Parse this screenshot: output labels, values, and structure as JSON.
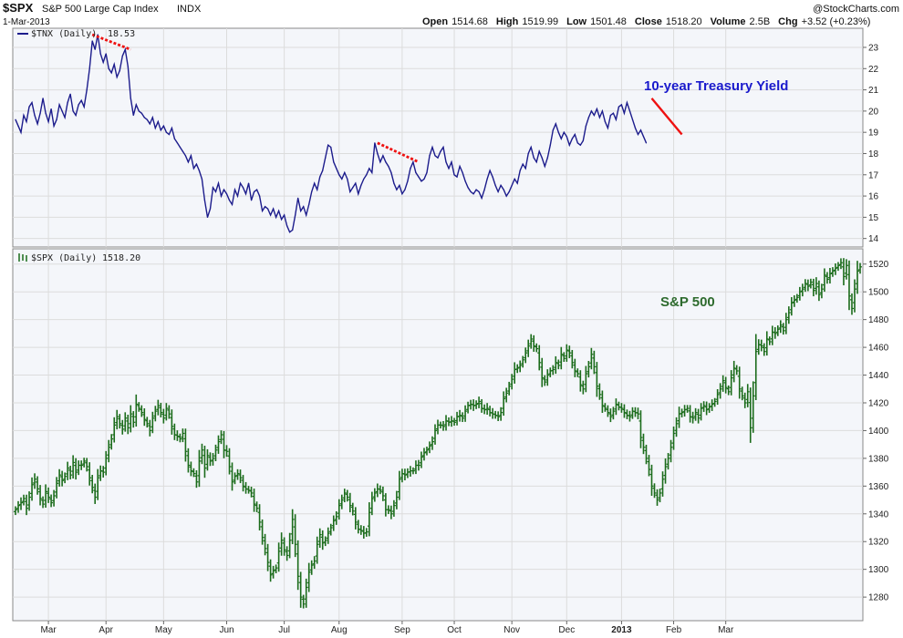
{
  "header": {
    "symbol": "$SPX",
    "name": "S&P 500 Large Cap Index",
    "exchange": "INDX",
    "date": "1-Mar-2013",
    "watermark": "@StockCharts.com",
    "stats": [
      {
        "label": "Open",
        "value": "1514.68"
      },
      {
        "label": "High",
        "value": "1519.99"
      },
      {
        "label": "Low",
        "value": "1501.48"
      },
      {
        "label": "Close",
        "value": "1518.20"
      },
      {
        "label": "Volume",
        "value": "2.5B"
      },
      {
        "label": "Chg",
        "value": "+3.52 (+0.23%)"
      }
    ]
  },
  "colors": {
    "tnx_line": "#1c1c8c",
    "spx_bars": "#1a6b1a",
    "trend_red": "#ee1111",
    "annot_blue": "#1a1acc",
    "annot_green": "#2e6b2e",
    "grid": "#dcdcdc",
    "panel_bg": "#f4f6fa"
  },
  "chart_data": [
    {
      "type": "line",
      "panel": "top",
      "series": [
        {
          "name": "$TNX (Daily)",
          "last_value": "18.53",
          "values": [
            19.6,
            19.3,
            19.0,
            19.8,
            19.5,
            20.2,
            20.4,
            19.8,
            19.4,
            19.9,
            20.6,
            19.9,
            19.5,
            20.1,
            19.3,
            19.6,
            20.3,
            20.0,
            19.7,
            20.4,
            20.8,
            20.0,
            19.8,
            20.3,
            20.5,
            20.2,
            21.0,
            22.0,
            23.3,
            22.9,
            23.6,
            22.7,
            22.3,
            22.7,
            22.0,
            21.8,
            22.2,
            21.6,
            21.9,
            22.6,
            22.9,
            22.1,
            20.6,
            19.8,
            20.3,
            20.0,
            19.9,
            19.7,
            19.6,
            19.4,
            19.7,
            19.2,
            19.5,
            19.1,
            19.3,
            19.0,
            18.9,
            19.2,
            18.7,
            18.5,
            18.3,
            18.1,
            17.9,
            17.6,
            17.9,
            17.3,
            17.5,
            17.2,
            16.8,
            15.8,
            15.0,
            15.4,
            16.4,
            16.2,
            16.6,
            16.0,
            16.3,
            16.1,
            15.8,
            15.6,
            16.3,
            16.0,
            16.6,
            16.4,
            16.1,
            16.6,
            15.8,
            16.2,
            16.3,
            16.0,
            15.3,
            15.5,
            15.4,
            15.1,
            15.4,
            15.0,
            15.3,
            14.9,
            15.1,
            14.6,
            14.3,
            14.4,
            15.1,
            15.9,
            15.3,
            15.5,
            15.1,
            15.6,
            16.2,
            16.6,
            16.3,
            16.9,
            17.2,
            17.8,
            18.4,
            18.3,
            17.6,
            17.3,
            17.0,
            16.8,
            17.1,
            16.8,
            16.2,
            16.4,
            16.6,
            16.1,
            16.5,
            16.8,
            17.0,
            17.3,
            17.1,
            18.5,
            18.0,
            17.6,
            17.9,
            17.6,
            17.4,
            17.1,
            16.6,
            16.3,
            16.5,
            16.1,
            16.3,
            16.7,
            17.3,
            17.6,
            17.1,
            16.9,
            16.7,
            16.8,
            17.1,
            17.9,
            18.3,
            17.9,
            17.8,
            18.1,
            18.3,
            17.6,
            17.3,
            17.6,
            17.0,
            16.9,
            17.4,
            17.1,
            16.7,
            16.4,
            16.2,
            16.1,
            16.3,
            16.2,
            15.9,
            16.3,
            16.8,
            17.2,
            16.9,
            16.5,
            16.2,
            16.5,
            16.3,
            16.0,
            16.2,
            16.5,
            16.8,
            16.6,
            17.2,
            17.5,
            17.3,
            18.0,
            18.3,
            17.8,
            17.6,
            18.1,
            17.8,
            17.4,
            17.8,
            18.4,
            19.1,
            19.4,
            19.0,
            18.7,
            19.0,
            18.8,
            18.4,
            18.7,
            18.9,
            18.5,
            18.4,
            18.6,
            19.3,
            19.7,
            20.0,
            19.8,
            20.1,
            19.7,
            20.0,
            19.5,
            19.2,
            19.8,
            19.9,
            19.6,
            20.2,
            20.3,
            19.9,
            20.4,
            20.0,
            19.6,
            19.2,
            18.9,
            19.1,
            18.8,
            18.5
          ]
        }
      ],
      "y_ticks": [
        14,
        15,
        16,
        17,
        18,
        19,
        20,
        21,
        22,
        23
      ],
      "ylim": [
        13.6,
        23.9
      ],
      "annotations": [
        {
          "text": "10-year Treasury Yield",
          "color": "annot_blue"
        }
      ],
      "trendlines": [
        {
          "from": [
            28,
            23.6
          ],
          "to": [
            42,
            22.9
          ],
          "style": "dotted"
        },
        {
          "from": [
            132,
            18.5
          ],
          "to": [
            147,
            17.6
          ],
          "style": "dotted"
        },
        {
          "from": [
            232,
            20.6
          ],
          "to": [
            243,
            18.9
          ],
          "style": "solid"
        }
      ]
    },
    {
      "type": "ohlc",
      "panel": "bottom",
      "series": [
        {
          "name": "$SPX (Daily)",
          "last_value": "1518.20",
          "close": [
            1343,
            1346,
            1348,
            1351,
            1344,
            1352,
            1361,
            1365,
            1358,
            1351,
            1347,
            1356,
            1352,
            1348,
            1353,
            1362,
            1368,
            1364,
            1367,
            1373,
            1368,
            1377,
            1370,
            1375,
            1375,
            1378,
            1374,
            1366,
            1359,
            1352,
            1366,
            1371,
            1370,
            1380,
            1388,
            1394,
            1404,
            1410,
            1405,
            1401,
            1409,
            1402,
            1412,
            1406,
            1419,
            1416,
            1413,
            1408,
            1405,
            1400,
            1409,
            1414,
            1418,
            1413,
            1409,
            1416,
            1412,
            1403,
            1397,
            1396,
            1394,
            1398,
            1385,
            1375,
            1371,
            1369,
            1363,
            1378,
            1386,
            1373,
            1382,
            1378,
            1380,
            1386,
            1392,
            1397,
            1386,
            1385,
            1374,
            1363,
            1367,
            1369,
            1366,
            1360,
            1358,
            1357,
            1355,
            1347,
            1344,
            1334,
            1323,
            1315,
            1305,
            1296,
            1299,
            1301,
            1313,
            1321,
            1314,
            1310,
            1321,
            1336,
            1318,
            1295,
            1280,
            1275,
            1287,
            1298,
            1303,
            1306,
            1318,
            1325,
            1319,
            1321,
            1326,
            1330,
            1335,
            1338,
            1346,
            1350,
            1355,
            1352,
            1346,
            1342,
            1334,
            1329,
            1328,
            1326,
            1327,
            1341,
            1351,
            1355,
            1358,
            1357,
            1353,
            1343,
            1343,
            1340,
            1346,
            1352,
            1365,
            1369,
            1368,
            1370,
            1371,
            1371,
            1375,
            1375,
            1381,
            1384,
            1386,
            1389,
            1392,
            1400,
            1404,
            1404,
            1403,
            1407,
            1406,
            1407,
            1406,
            1410,
            1411,
            1409,
            1414,
            1418,
            1419,
            1418,
            1419,
            1421,
            1416,
            1415,
            1416,
            1413,
            1412,
            1411,
            1410,
            1413,
            1423,
            1427,
            1432,
            1437,
            1444,
            1445,
            1447,
            1451,
            1456,
            1461,
            1466,
            1461,
            1459,
            1449,
            1438,
            1435,
            1440,
            1443,
            1444,
            1449,
            1447,
            1455,
            1452,
            1458,
            1456,
            1449,
            1443,
            1441,
            1433,
            1430,
            1441,
            1446,
            1455,
            1446,
            1432,
            1426,
            1418,
            1416,
            1413,
            1410,
            1414,
            1419,
            1417,
            1416,
            1413,
            1411,
            1410,
            1414,
            1413,
            1412,
            1395,
            1388,
            1380,
            1372,
            1360,
            1355,
            1350,
            1355,
            1365,
            1374,
            1380,
            1388,
            1398,
            1405,
            1412,
            1413,
            1415,
            1416,
            1410,
            1409,
            1413,
            1409,
            1416,
            1418,
            1415,
            1417,
            1419,
            1421,
            1426,
            1430,
            1436,
            1431,
            1428,
            1438,
            1445,
            1443,
            1430,
            1425,
            1420,
            1428,
            1402,
            1425,
            1457,
            1462,
            1461,
            1457,
            1466,
            1464,
            1471,
            1470,
            1473,
            1476,
            1472,
            1480,
            1485,
            1492,
            1494,
            1496,
            1500,
            1502,
            1506,
            1504,
            1507,
            1501,
            1506,
            1498,
            1502,
            1512,
            1509,
            1513,
            1515,
            1517,
            1519,
            1521,
            1511,
            1519,
            1497,
            1488,
            1502,
            1515,
            1518
          ]
        }
      ],
      "y_ticks": [
        1280,
        1300,
        1320,
        1340,
        1360,
        1380,
        1400,
        1420,
        1440,
        1460,
        1480,
        1500,
        1520
      ],
      "ylim": [
        1263,
        1531
      ],
      "annotations": [
        {
          "text": "S&P 500",
          "color": "annot_green"
        }
      ]
    }
  ],
  "x_axis": {
    "labels": [
      {
        "text": "Mar",
        "index": 12
      },
      {
        "text": "Apr",
        "index": 33
      },
      {
        "text": "May",
        "index": 54
      },
      {
        "text": "Jun",
        "index": 77
      },
      {
        "text": "Jul",
        "index": 98
      },
      {
        "text": "Aug",
        "index": 118
      },
      {
        "text": "Sep",
        "index": 141
      },
      {
        "text": "Oct",
        "index": 160
      },
      {
        "text": "Nov",
        "index": 181
      },
      {
        "text": "Dec",
        "index": 201
      },
      {
        "text": "2013",
        "index": 221
      },
      {
        "text": "Feb",
        "index": 240
      },
      {
        "text": "Mar",
        "index": 259
      }
    ]
  }
}
